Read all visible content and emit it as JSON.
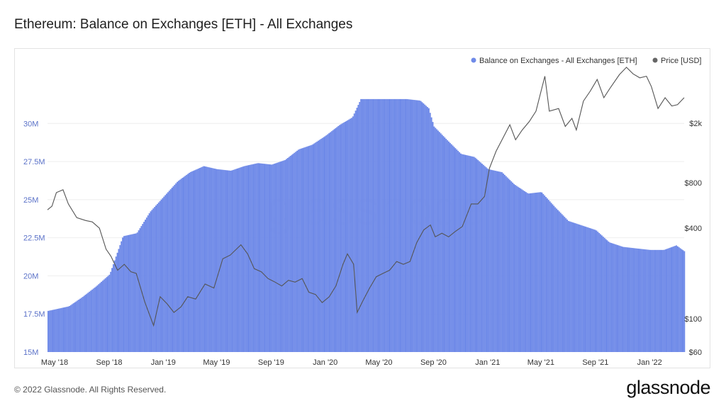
{
  "page": {
    "title": "Ethereum: Balance on Exchanges [ETH] - All Exchanges",
    "copyright": "© 2022 Glassnode. All Rights Reserved.",
    "brand": "glassnode",
    "watermark": "glassnode"
  },
  "chart_data": {
    "type": "area",
    "title": "Ethereum: Balance on Exchanges [ETH] - All Exchanges",
    "legend_position": "top-right",
    "grid": true,
    "x_ticks": [
      "May '18",
      "Sep '18",
      "Jan '19",
      "May '19",
      "Sep '19",
      "Jan '20",
      "May '20",
      "Sep '20",
      "Jan '21",
      "May '21",
      "Sep '21",
      "Jan '22"
    ],
    "x_tick_dates": [
      "2018-05-01",
      "2018-09-01",
      "2019-01-01",
      "2019-05-01",
      "2019-09-01",
      "2020-01-01",
      "2020-05-01",
      "2020-09-01",
      "2021-01-01",
      "2021-05-01",
      "2021-09-01",
      "2022-01-01"
    ],
    "x_range": [
      "2018-04-15",
      "2022-03-20"
    ],
    "y_left": {
      "scale": "linear",
      "range": [
        15000000,
        33500000
      ],
      "ticks": [
        15000000,
        17500000,
        20000000,
        22500000,
        25000000,
        27500000,
        30000000
      ],
      "tick_labels": [
        "15M",
        "17.5M",
        "20M",
        "22.5M",
        "25M",
        "27.5M",
        "30M"
      ]
    },
    "y_right": {
      "scale": "log",
      "range": [
        60,
        4500
      ],
      "ticks": [
        60,
        100,
        400,
        800,
        2000
      ],
      "tick_labels": [
        "$60",
        "$100",
        "$400",
        "$800",
        "$2k"
      ]
    },
    "colors": {
      "balance": "#6f8ae8",
      "price": "#555555"
    },
    "series": [
      {
        "name": "Balance on Exchanges - All Exchanges [ETH]",
        "axis": "left",
        "color": "#6f8ae8",
        "points": [
          [
            "2018-04-15",
            17700000
          ],
          [
            "2018-05-01",
            17800000
          ],
          [
            "2018-06-01",
            18000000
          ],
          [
            "2018-07-01",
            18600000
          ],
          [
            "2018-08-01",
            19300000
          ],
          [
            "2018-09-01",
            20100000
          ],
          [
            "2018-10-01",
            22600000
          ],
          [
            "2018-11-01",
            22800000
          ],
          [
            "2018-12-01",
            24200000
          ],
          [
            "2019-01-01",
            25200000
          ],
          [
            "2019-02-01",
            26200000
          ],
          [
            "2019-03-01",
            26800000
          ],
          [
            "2019-04-01",
            27200000
          ],
          [
            "2019-05-01",
            27000000
          ],
          [
            "2019-06-01",
            26900000
          ],
          [
            "2019-07-01",
            27200000
          ],
          [
            "2019-08-01",
            27400000
          ],
          [
            "2019-09-01",
            27300000
          ],
          [
            "2019-10-01",
            27600000
          ],
          [
            "2019-11-01",
            28300000
          ],
          [
            "2019-12-01",
            28600000
          ],
          [
            "2020-01-01",
            29200000
          ],
          [
            "2020-02-01",
            29900000
          ],
          [
            "2020-03-01",
            30400000
          ],
          [
            "2020-03-20",
            31600000
          ],
          [
            "2020-05-01",
            31600000
          ],
          [
            "2020-06-01",
            31600000
          ],
          [
            "2020-07-01",
            31600000
          ],
          [
            "2020-08-01",
            31500000
          ],
          [
            "2020-08-20",
            31000000
          ],
          [
            "2020-09-01",
            29800000
          ],
          [
            "2020-10-01",
            28900000
          ],
          [
            "2020-11-01",
            28000000
          ],
          [
            "2020-12-01",
            27800000
          ],
          [
            "2021-01-01",
            27000000
          ],
          [
            "2021-02-01",
            26800000
          ],
          [
            "2021-03-01",
            26000000
          ],
          [
            "2021-04-01",
            25400000
          ],
          [
            "2021-05-01",
            25500000
          ],
          [
            "2021-06-01",
            24500000
          ],
          [
            "2021-07-01",
            23600000
          ],
          [
            "2021-08-01",
            23300000
          ],
          [
            "2021-09-01",
            23000000
          ],
          [
            "2021-10-01",
            22200000
          ],
          [
            "2021-11-01",
            21900000
          ],
          [
            "2021-12-01",
            21800000
          ],
          [
            "2022-01-01",
            21700000
          ],
          [
            "2022-02-01",
            21700000
          ],
          [
            "2022-03-01",
            22000000
          ],
          [
            "2022-03-20",
            21600000
          ]
        ]
      },
      {
        "name": "Price [USD]",
        "axis": "right",
        "color": "#555555",
        "points": [
          [
            "2018-04-15",
            530
          ],
          [
            "2018-04-25",
            560
          ],
          [
            "2018-05-05",
            690
          ],
          [
            "2018-05-20",
            720
          ],
          [
            "2018-06-01",
            580
          ],
          [
            "2018-06-20",
            470
          ],
          [
            "2018-07-10",
            450
          ],
          [
            "2018-07-25",
            440
          ],
          [
            "2018-08-10",
            400
          ],
          [
            "2018-08-25",
            290
          ],
          [
            "2018-09-05",
            260
          ],
          [
            "2018-09-20",
            210
          ],
          [
            "2018-10-05",
            230
          ],
          [
            "2018-10-20",
            205
          ],
          [
            "2018-11-01",
            200
          ],
          [
            "2018-11-20",
            130
          ],
          [
            "2018-12-10",
            90
          ],
          [
            "2018-12-25",
            140
          ],
          [
            "2019-01-10",
            125
          ],
          [
            "2019-01-25",
            110
          ],
          [
            "2019-02-10",
            120
          ],
          [
            "2019-02-25",
            140
          ],
          [
            "2019-03-15",
            135
          ],
          [
            "2019-04-05",
            170
          ],
          [
            "2019-04-25",
            160
          ],
          [
            "2019-05-15",
            250
          ],
          [
            "2019-06-01",
            265
          ],
          [
            "2019-06-25",
            310
          ],
          [
            "2019-07-10",
            270
          ],
          [
            "2019-07-25",
            215
          ],
          [
            "2019-08-10",
            205
          ],
          [
            "2019-08-25",
            185
          ],
          [
            "2019-09-10",
            175
          ],
          [
            "2019-09-25",
            165
          ],
          [
            "2019-10-10",
            180
          ],
          [
            "2019-10-25",
            175
          ],
          [
            "2019-11-10",
            185
          ],
          [
            "2019-11-25",
            150
          ],
          [
            "2019-12-10",
            145
          ],
          [
            "2019-12-25",
            128
          ],
          [
            "2020-01-10",
            140
          ],
          [
            "2020-01-25",
            165
          ],
          [
            "2020-02-10",
            230
          ],
          [
            "2020-02-20",
            270
          ],
          [
            "2020-03-05",
            230
          ],
          [
            "2020-03-13",
            110
          ],
          [
            "2020-03-25",
            130
          ],
          [
            "2020-04-10",
            160
          ],
          [
            "2020-04-25",
            190
          ],
          [
            "2020-05-10",
            200
          ],
          [
            "2020-05-25",
            210
          ],
          [
            "2020-06-10",
            240
          ],
          [
            "2020-06-25",
            230
          ],
          [
            "2020-07-10",
            240
          ],
          [
            "2020-07-25",
            320
          ],
          [
            "2020-08-10",
            390
          ],
          [
            "2020-08-25",
            420
          ],
          [
            "2020-09-05",
            350
          ],
          [
            "2020-09-20",
            370
          ],
          [
            "2020-10-05",
            350
          ],
          [
            "2020-10-20",
            380
          ],
          [
            "2020-11-05",
            410
          ],
          [
            "2020-11-25",
            580
          ],
          [
            "2020-12-10",
            580
          ],
          [
            "2020-12-25",
            650
          ],
          [
            "2021-01-05",
            1000
          ],
          [
            "2021-01-20",
            1300
          ],
          [
            "2021-02-05",
            1600
          ],
          [
            "2021-02-20",
            1950
          ],
          [
            "2021-03-05",
            1550
          ],
          [
            "2021-03-20",
            1800
          ],
          [
            "2021-04-05",
            2050
          ],
          [
            "2021-04-20",
            2400
          ],
          [
            "2021-05-10",
            4100
          ],
          [
            "2021-05-20",
            2400
          ],
          [
            "2021-06-10",
            2500
          ],
          [
            "2021-06-25",
            1900
          ],
          [
            "2021-07-10",
            2150
          ],
          [
            "2021-07-20",
            1800
          ],
          [
            "2021-08-05",
            2800
          ],
          [
            "2021-08-20",
            3250
          ],
          [
            "2021-09-05",
            3900
          ],
          [
            "2021-09-20",
            2950
          ],
          [
            "2021-10-05",
            3450
          ],
          [
            "2021-10-25",
            4200
          ],
          [
            "2021-11-10",
            4700
          ],
          [
            "2021-11-25",
            4250
          ],
          [
            "2021-12-10",
            4000
          ],
          [
            "2021-12-25",
            4100
          ],
          [
            "2022-01-05",
            3500
          ],
          [
            "2022-01-20",
            2500
          ],
          [
            "2022-02-05",
            2950
          ],
          [
            "2022-02-20",
            2600
          ],
          [
            "2022-03-05",
            2650
          ],
          [
            "2022-03-20",
            2950
          ]
        ]
      }
    ]
  }
}
